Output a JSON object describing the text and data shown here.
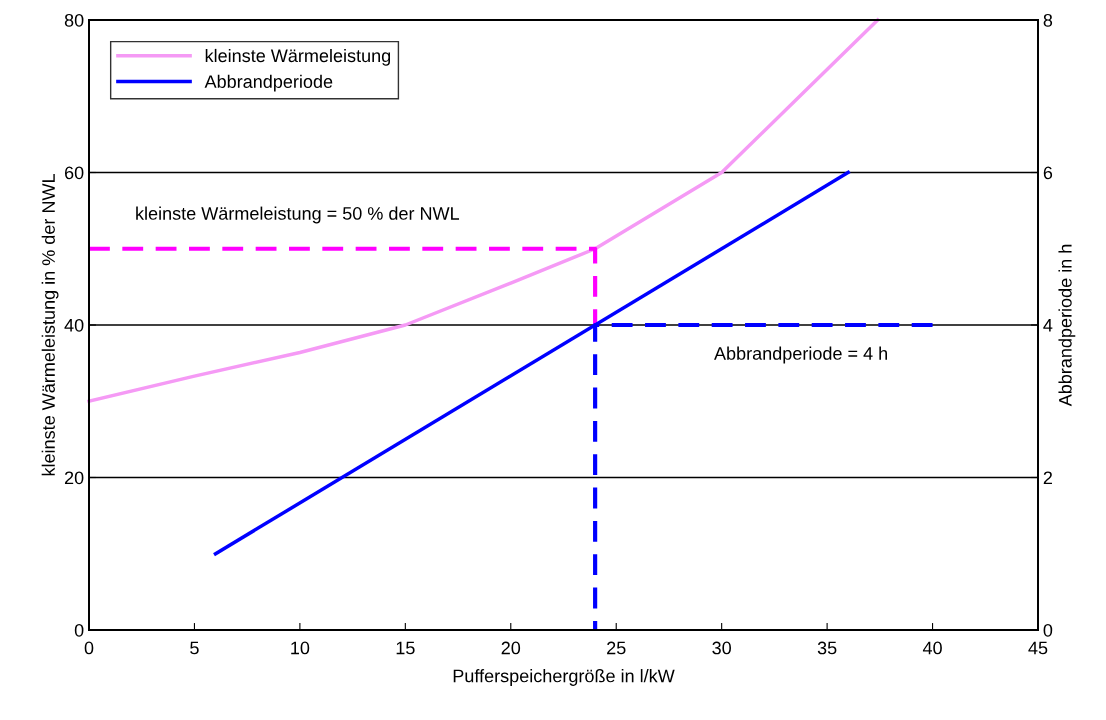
{
  "chart_data": {
    "type": "line",
    "xlabel": "Pufferspeichergröße in l/kW",
    "ylabel": "kleinste Wärmeleistung in % der NWL",
    "y2label": "Abbrandperiode in h",
    "xlim": [
      0,
      45
    ],
    "xticks": [
      0,
      5,
      10,
      15,
      20,
      25,
      30,
      35,
      40,
      45
    ],
    "ylim": [
      0,
      80
    ],
    "yticks": [
      0,
      20,
      40,
      60,
      80
    ],
    "y2lim": [
      0,
      8
    ],
    "y2ticks": [
      0,
      2,
      4,
      6,
      8
    ],
    "grid": "y",
    "legend": "top left",
    "marker": "none",
    "series": [
      {
        "name": "kleinste Wärmeleistung",
        "color": "#f59af5",
        "line_style": "solid",
        "x": [
          0,
          5,
          10,
          15,
          20,
          24,
          30,
          33.7,
          37.4
        ],
        "values": [
          30,
          33.3,
          36.4,
          40,
          45.5,
          50,
          60,
          70,
          80
        ]
      },
      {
        "name": "Abbrandperiode",
        "color": "#0000ff",
        "line_style": "solid",
        "axis": "y2",
        "x": [
          6,
          36
        ],
        "values": [
          1,
          6
        ]
      },
      {
        "color": "#ff00ff",
        "line_style": "dashed",
        "x": [
          0,
          24,
          24
        ],
        "values": [
          50,
          50,
          40
        ]
      },
      {
        "color": "#0000ff",
        "line_style": "dashed",
        "axis": "y2",
        "x": [
          40,
          24,
          24
        ],
        "values": [
          4,
          4,
          0
        ]
      }
    ],
    "annotations": [
      "kleinste Wärmeleistung = 50 % der NWL",
      "Abbrandperiode = 4 h"
    ]
  }
}
